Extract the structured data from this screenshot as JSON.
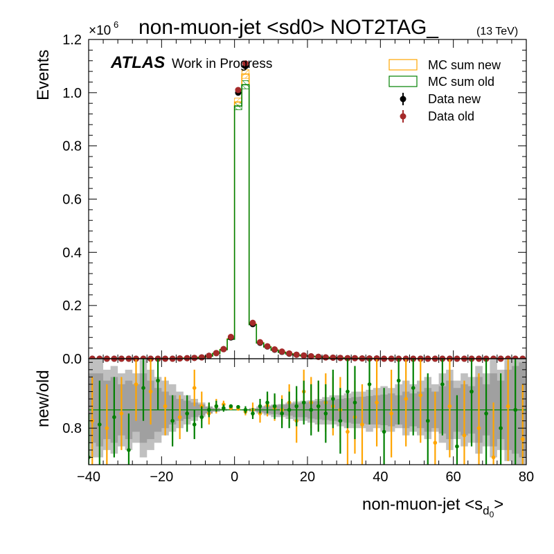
{
  "chart_data": [
    {
      "type": "histogram",
      "panel": "main",
      "title": "non-muon-jet <sd0> NOT2TAG_",
      "title_suffix": "(13 TeV)",
      "experiment_label": "ATLAS",
      "experiment_sublabel": "Work in Progress",
      "ylabel": "Events",
      "y_multiplier": "×10",
      "y_multiplier_exp": "6",
      "xlim": [
        -40,
        80
      ],
      "ylim": [
        0,
        1.2
      ],
      "x_ticks": [
        -40,
        -20,
        0,
        20,
        40,
        60,
        80
      ],
      "x_tick_labels": [
        "−40",
        "−20",
        "0",
        "20",
        "40",
        "60",
        "80"
      ],
      "y_ticks": [
        0,
        0.2,
        0.4,
        0.6,
        0.8,
        1.0,
        1.2
      ],
      "y_tick_labels": [
        "0.0",
        "0.2",
        "0.4",
        "0.6",
        "0.8",
        "1.0",
        "1.2"
      ],
      "bin_edges": [
        -40,
        -38,
        -36,
        -34,
        -32,
        -30,
        -28,
        -26,
        -24,
        -22,
        -20,
        -18,
        -16,
        -14,
        -12,
        -10,
        -8,
        -6,
        -4,
        -2,
        0,
        2,
        4,
        6,
        8,
        10,
        12,
        14,
        16,
        18,
        20,
        22,
        24,
        26,
        28,
        30,
        32,
        34,
        36,
        38,
        40,
        42,
        44,
        46,
        48,
        50,
        52,
        54,
        56,
        58,
        60,
        62,
        64,
        66,
        68,
        70,
        72,
        74,
        76,
        78,
        80
      ],
      "legend_position": "top-right",
      "series": [
        {
          "name": "MC sum new",
          "style": "hatched-step",
          "color": "#ffa500",
          "values": [
            0,
            0,
            0,
            0,
            0,
            0,
            0,
            0,
            0,
            0,
            0,
            0,
            0.001,
            0.002,
            0.003,
            0.005,
            0.01,
            0.02,
            0.035,
            0.075,
            0.965,
            1.07,
            0.13,
            0.06,
            0.045,
            0.033,
            0.025,
            0.019,
            0.014,
            0.011,
            0.009,
            0.007,
            0.005,
            0.004,
            0.003,
            0.002,
            0.002,
            0.001,
            0.001,
            0.001,
            0,
            0,
            0,
            0,
            0,
            0,
            0,
            0,
            0,
            0,
            0,
            0,
            0,
            0,
            0,
            0,
            0,
            0,
            0,
            0
          ]
        },
        {
          "name": "MC sum old",
          "style": "hatched-step",
          "color": "#008000",
          "values": [
            0,
            0,
            0,
            0,
            0,
            0,
            0,
            0,
            0,
            0,
            0,
            0,
            0.001,
            0.002,
            0.003,
            0.005,
            0.01,
            0.02,
            0.034,
            0.073,
            0.95,
            1.03,
            0.128,
            0.059,
            0.044,
            0.032,
            0.024,
            0.018,
            0.014,
            0.011,
            0.009,
            0.007,
            0.005,
            0.004,
            0.003,
            0.002,
            0.002,
            0.001,
            0.001,
            0.001,
            0,
            0,
            0,
            0,
            0,
            0,
            0,
            0,
            0,
            0,
            0,
            0,
            0,
            0,
            0,
            0,
            0,
            0,
            0,
            0
          ]
        },
        {
          "name": "Data new",
          "style": "points",
          "color": "#000000",
          "values": [
            0,
            0,
            0,
            0,
            0,
            0,
            0,
            0,
            0,
            0,
            0,
            0,
            0.001,
            0.002,
            0.003,
            0.005,
            0.011,
            0.021,
            0.036,
            0.08,
            1.0,
            1.1,
            0.13,
            0.06,
            0.046,
            0.034,
            0.026,
            0.019,
            0.015,
            0.012,
            0.009,
            0.007,
            0.005,
            0.004,
            0.003,
            0.002,
            0.002,
            0.001,
            0.001,
            0.001,
            0,
            0,
            0,
            0,
            0,
            0,
            0,
            0,
            0,
            0,
            0,
            0,
            0,
            0,
            0,
            0,
            0,
            0,
            0,
            0
          ]
        },
        {
          "name": "Data old",
          "style": "points",
          "color": "#a52a2a",
          "values": [
            0,
            0,
            0,
            0,
            0,
            0,
            0,
            0,
            0,
            0,
            0,
            0,
            0.001,
            0.002,
            0.003,
            0.005,
            0.011,
            0.021,
            0.036,
            0.082,
            1.01,
            1.11,
            0.135,
            0.062,
            0.047,
            0.035,
            0.027,
            0.02,
            0.015,
            0.012,
            0.009,
            0.007,
            0.005,
            0.004,
            0.003,
            0.002,
            0.002,
            0.001,
            0.001,
            0.001,
            0,
            0,
            0,
            0,
            0,
            0,
            0,
            0,
            0,
            0,
            0,
            0,
            0,
            0,
            0,
            0,
            0,
            0,
            0,
            0
          ]
        }
      ]
    },
    {
      "type": "ratio",
      "panel": "ratio",
      "ylabel": "new/old",
      "xlabel": "non-muon-jet <s",
      "xlabel_sub": "d",
      "xlabel_subsub": "0",
      "xlabel_close": ">",
      "xlim": [
        -40,
        80
      ],
      "ylim": [
        0.7,
        0.99
      ],
      "y_ticks": [
        0.8
      ],
      "y_tick_labels": [
        "0.8"
      ],
      "reference_line": 0.85,
      "band_light_color": "#c0c0c0",
      "band_dark_color": "#a0a0a0",
      "band_light": {
        "lo": [
          0.72,
          0.72,
          0.74,
          0.73,
          0.75,
          0.74,
          0.76,
          0.72,
          0.74,
          0.76,
          0.78,
          0.79,
          0.8,
          0.81,
          0.82,
          0.83,
          0.84,
          0.845,
          0.848,
          0.85,
          0.85,
          0.848,
          0.845,
          0.84,
          0.835,
          0.83,
          0.83,
          0.825,
          0.82,
          0.82,
          0.815,
          0.81,
          0.81,
          0.81,
          0.805,
          0.8,
          0.8,
          0.8,
          0.79,
          0.8,
          0.79,
          0.79,
          0.8,
          0.78,
          0.79,
          0.78,
          0.77,
          0.79,
          0.76,
          0.74,
          0.77,
          0.75,
          0.76,
          0.73,
          0.75,
          0.72,
          0.74,
          0.71,
          0.7,
          0.7
        ],
        "hi": [
          0.99,
          0.99,
          0.96,
          0.97,
          0.95,
          0.96,
          0.95,
          0.99,
          0.96,
          0.94,
          0.93,
          0.92,
          0.9,
          0.89,
          0.88,
          0.87,
          0.86,
          0.856,
          0.853,
          0.852,
          0.851,
          0.852,
          0.855,
          0.86,
          0.862,
          0.865,
          0.866,
          0.87,
          0.873,
          0.875,
          0.876,
          0.88,
          0.885,
          0.89,
          0.89,
          0.895,
          0.9,
          0.9,
          0.905,
          0.91,
          0.915,
          0.91,
          0.92,
          0.93,
          0.92,
          0.93,
          0.94,
          0.92,
          0.95,
          0.96,
          0.93,
          0.95,
          0.94,
          0.97,
          0.95,
          0.99,
          0.96,
          0.99,
          0.99,
          0.99
        ]
      },
      "band_dark": {
        "lo": [
          0.76,
          0.75,
          0.77,
          0.76,
          0.78,
          0.77,
          0.79,
          0.76,
          0.77,
          0.79,
          0.8,
          0.81,
          0.82,
          0.825,
          0.83,
          0.835,
          0.84,
          0.845,
          0.848,
          0.849,
          0.849,
          0.849,
          0.847,
          0.844,
          0.84,
          0.838,
          0.836,
          0.834,
          0.83,
          0.83,
          0.826,
          0.824,
          0.822,
          0.82,
          0.818,
          0.815,
          0.812,
          0.812,
          0.81,
          0.81,
          0.808,
          0.805,
          0.81,
          0.8,
          0.805,
          0.8,
          0.79,
          0.8,
          0.785,
          0.77,
          0.79,
          0.78,
          0.785,
          0.76,
          0.78,
          0.75,
          0.77,
          0.74,
          0.73,
          0.72
        ],
        "hi": [
          0.95,
          0.95,
          0.93,
          0.94,
          0.92,
          0.93,
          0.92,
          0.95,
          0.93,
          0.91,
          0.9,
          0.89,
          0.88,
          0.875,
          0.87,
          0.865,
          0.858,
          0.854,
          0.852,
          0.851,
          0.851,
          0.851,
          0.853,
          0.856,
          0.86,
          0.862,
          0.864,
          0.866,
          0.868,
          0.87,
          0.872,
          0.874,
          0.876,
          0.878,
          0.88,
          0.882,
          0.885,
          0.886,
          0.888,
          0.89,
          0.892,
          0.895,
          0.89,
          0.9,
          0.895,
          0.9,
          0.91,
          0.9,
          0.915,
          0.93,
          0.91,
          0.92,
          0.915,
          0.94,
          0.92,
          0.95,
          0.93,
          0.96,
          0.97,
          0.98
        ]
      },
      "series": [
        {
          "name": "orange",
          "color": "#ffa500",
          "x": [
            -39,
            -35,
            -31,
            -27,
            -23,
            -19,
            -15,
            -11,
            -9,
            -7,
            -5,
            -3,
            -1,
            1,
            3,
            5,
            7,
            9,
            11,
            13,
            15,
            17,
            19,
            21,
            23,
            25,
            27,
            29,
            31,
            33,
            35,
            39,
            43,
            47,
            51,
            55,
            59,
            63,
            67,
            71,
            75,
            79
          ],
          "y": [
            0.82,
            0.8,
            0.84,
            0.92,
            0.9,
            0.86,
            0.83,
            0.91,
            0.86,
            0.84,
            0.86,
            0.865,
            0.855,
            0.853,
            0.845,
            0.85,
            0.84,
            0.862,
            0.855,
            0.85,
            0.87,
            0.82,
            0.9,
            0.87,
            0.86,
            0.87,
            0.86,
            0.85,
            0.79,
            0.83,
            0.81,
            0.87,
            0.84,
            0.88,
            0.89,
            0.76,
            0.86,
            0.78,
            0.8,
            0.72,
            0.86,
            0.77
          ],
          "err": [
            0.12,
            0.12,
            0.1,
            0.1,
            0.09,
            0.08,
            0.06,
            0.05,
            0.04,
            0.03,
            0.02,
            0.01,
            0.005,
            0.005,
            0.01,
            0.02,
            0.025,
            0.03,
            0.035,
            0.04,
            0.05,
            0.06,
            0.06,
            0.07,
            0.07,
            0.08,
            0.08,
            0.09,
            0.1,
            0.1,
            0.11,
            0.12,
            0.12,
            0.13,
            0.13,
            0.14,
            0.14,
            0.15,
            0.15,
            0.15,
            0.15,
            0.15
          ]
        },
        {
          "name": "green",
          "color": "#008000",
          "x": [
            -40,
            -37,
            -33,
            -29,
            -25,
            -21,
            -17,
            -13,
            -11,
            -9,
            -7,
            -5,
            -3,
            -1,
            1,
            3,
            5,
            7,
            9,
            11,
            13,
            15,
            17,
            19,
            21,
            23,
            25,
            27,
            29,
            31,
            33,
            37,
            41,
            45,
            49,
            53,
            57,
            61,
            65,
            69,
            73,
            77
          ],
          "y": [
            0.72,
            0.81,
            0.83,
            0.74,
            0.91,
            0.93,
            0.82,
            0.84,
            0.81,
            0.83,
            0.85,
            0.86,
            0.855,
            0.86,
            0.858,
            0.85,
            0.84,
            0.86,
            0.87,
            0.86,
            0.84,
            0.85,
            0.86,
            0.87,
            0.85,
            0.86,
            0.84,
            0.88,
            0.82,
            0.9,
            0.87,
            0.92,
            0.79,
            0.93,
            0.91,
            0.82,
            0.92,
            0.75,
            0.9,
            0.84,
            0.8,
            0.85
          ],
          "err": [
            0.12,
            0.12,
            0.11,
            0.1,
            0.09,
            0.08,
            0.07,
            0.05,
            0.04,
            0.03,
            0.02,
            0.015,
            0.01,
            0.005,
            0.005,
            0.01,
            0.015,
            0.02,
            0.03,
            0.035,
            0.04,
            0.05,
            0.055,
            0.06,
            0.07,
            0.07,
            0.08,
            0.08,
            0.09,
            0.1,
            0.1,
            0.11,
            0.12,
            0.12,
            0.13,
            0.13,
            0.14,
            0.14,
            0.15,
            0.15,
            0.15,
            0.15
          ]
        }
      ]
    }
  ]
}
